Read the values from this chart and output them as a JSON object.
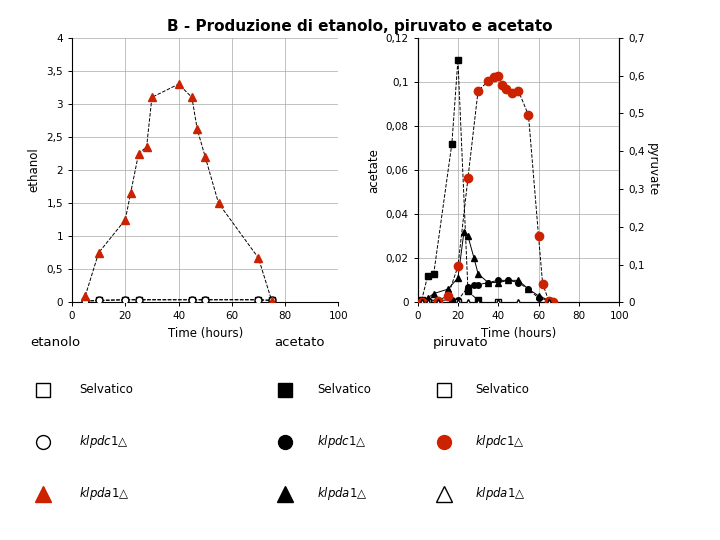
{
  "title": "B - Produzione di etanolo, piruvato e acetato",
  "title_fontsize": 11,
  "ethanol": {
    "xlabel": "Time (hours)",
    "ylabel": "ethanol",
    "xlim": [
      0,
      100
    ],
    "ylim": [
      0,
      4
    ],
    "yticks": [
      0,
      0.5,
      1,
      1.5,
      2,
      2.5,
      3,
      3.5,
      4
    ],
    "ytick_labels": [
      "0",
      "0,5",
      "1",
      "1,5",
      "2",
      "2,5",
      "3",
      "3,5",
      "4"
    ],
    "xticks": [
      0,
      20,
      40,
      60,
      80,
      100
    ],
    "selvatico_x": [
      5,
      10,
      20,
      25,
      45,
      50,
      70,
      75
    ],
    "selvatico_y": [
      0.02,
      0.03,
      0.04,
      0.04,
      0.04,
      0.04,
      0.04,
      0.03
    ],
    "klpdc1_x": [
      5,
      10,
      20,
      25,
      45,
      50,
      70,
      75
    ],
    "klpdc1_y": [
      0.02,
      0.03,
      0.04,
      0.04,
      0.04,
      0.04,
      0.04,
      0.03
    ],
    "klpda1_x": [
      5,
      10,
      20,
      22,
      25,
      28,
      30,
      40,
      45,
      47,
      50,
      55,
      70,
      75
    ],
    "klpda1_y": [
      0.1,
      0.75,
      1.25,
      1.65,
      2.25,
      2.35,
      3.1,
      3.3,
      3.1,
      2.62,
      2.2,
      1.5,
      0.67,
      0.02
    ]
  },
  "acetate": {
    "xlabel": "Time (hours)",
    "ylabel": "acetate",
    "ylabel2": "pyruvate",
    "xlim": [
      0,
      100
    ],
    "ylim": [
      0,
      0.12
    ],
    "ylim2": [
      0,
      0.7
    ],
    "yticks": [
      0,
      0.02,
      0.04,
      0.06,
      0.08,
      0.1,
      0.12
    ],
    "ytick_labels": [
      "0",
      "0,02",
      "0,04",
      "0,06",
      "0,08",
      "0,1",
      "0,12"
    ],
    "yticks2": [
      0,
      0.1,
      0.2,
      0.3,
      0.4,
      0.5,
      0.6,
      0.7
    ],
    "ytick_labels2": [
      "0",
      "0,1",
      "0,2",
      "0,3",
      "0,4",
      "0,5",
      "0,6",
      "0,7"
    ],
    "xticks": [
      0,
      20,
      40,
      60,
      80,
      100
    ],
    "acetate_selvatico_x": [
      2,
      5,
      8,
      17,
      20,
      25,
      30
    ],
    "acetate_selvatico_y": [
      0.001,
      0.012,
      0.013,
      0.072,
      0.11,
      0.005,
      0.001
    ],
    "acetate_klpdc1_x": [
      2,
      5,
      10,
      17,
      20,
      25,
      28,
      30,
      35,
      40,
      45,
      50,
      55,
      60,
      65
    ],
    "acetate_klpdc1_y": [
      0.001,
      0.001,
      0.001,
      0.001,
      0.001,
      0.007,
      0.008,
      0.008,
      0.009,
      0.01,
      0.01,
      0.009,
      0.006,
      0.002,
      0.001
    ],
    "acetate_klpda1_x": [
      2,
      5,
      8,
      15,
      20,
      23,
      25,
      28,
      30,
      35,
      40,
      45,
      50,
      55,
      60,
      65
    ],
    "acetate_klpda1_y": [
      0.001,
      0.002,
      0.004,
      0.006,
      0.011,
      0.032,
      0.03,
      0.02,
      0.013,
      0.009,
      0.009,
      0.01,
      0.01,
      0.006,
      0.003,
      0.001
    ],
    "pyruvate_selvatico_x": [
      2,
      5,
      20,
      40,
      65
    ],
    "pyruvate_selvatico_y": [
      0.0,
      0.0,
      0.0,
      0.0,
      0.0
    ],
    "pyruvate_klpdc1_x": [
      2,
      10,
      15,
      20,
      25,
      30,
      35,
      38,
      40,
      42,
      44,
      47,
      50,
      55,
      60,
      62,
      65,
      67
    ],
    "pyruvate_klpdc1_y": [
      0.002,
      0.005,
      0.017,
      0.095,
      0.33,
      0.56,
      0.585,
      0.595,
      0.6,
      0.575,
      0.565,
      0.555,
      0.56,
      0.495,
      0.175,
      0.05,
      0.005,
      0.001
    ],
    "pyruvate_klpda1_x": [
      2,
      5,
      10,
      20,
      25,
      30,
      40,
      50,
      65
    ],
    "pyruvate_klpda1_y": [
      0.0,
      0.0,
      0.0,
      0.0,
      0.0,
      0.0,
      0.0,
      0.0,
      0.0
    ]
  },
  "legend": {
    "etanolo_title": "etanolo",
    "acetato_title": "acetato",
    "piruvato_title": "piruvato",
    "selvatico": "Selvatico",
    "klpdc1": "klpdc1△",
    "klpda1": "klpda1△"
  },
  "colors": {
    "red": "#cc2200",
    "black": "#000000",
    "white": "#ffffff"
  }
}
